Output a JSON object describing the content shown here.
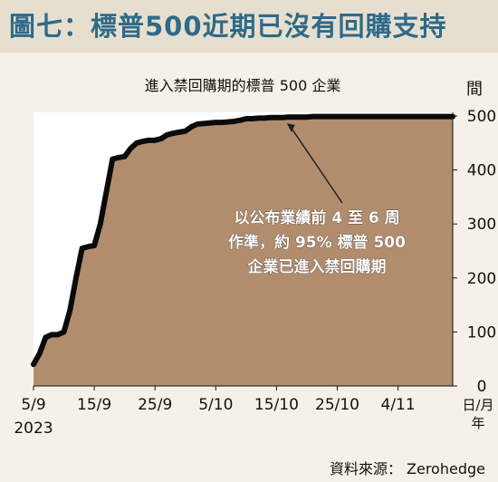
{
  "header": {
    "title": "圖七：標普500近期已沒有回購支持"
  },
  "footer": {
    "source": "資料來源： Zerohedge"
  },
  "colors": {
    "area": "#b18d6e",
    "line": "#0a0a0a",
    "title": "#2e6a8a",
    "header_bg": "#e6dfcf",
    "page_bg": "#f6f1e8"
  },
  "chart_data": {
    "type": "area",
    "title": "進入禁回購期的標普 500 企業",
    "ylabel": "間",
    "xlabel_line1": "日/月",
    "xlabel_line2": "年",
    "ylim": [
      0,
      500
    ],
    "xlim": [
      0,
      69
    ],
    "y_ticks": [
      0,
      100,
      200,
      300,
      400,
      500
    ],
    "x_ticks": [
      {
        "day": 0,
        "label": "5/9",
        "sublabel": "2023"
      },
      {
        "day": 10,
        "label": "15/9"
      },
      {
        "day": 20,
        "label": "25/9"
      },
      {
        "day": 30,
        "label": "5/10"
      },
      {
        "day": 40,
        "label": "15/10"
      },
      {
        "day": 50,
        "label": "25/10"
      },
      {
        "day": 60,
        "label": "4/11"
      }
    ],
    "x_days": [
      0,
      1,
      2,
      3,
      4,
      5,
      6,
      7,
      8,
      9,
      10,
      11,
      12,
      13,
      14,
      15,
      16,
      17,
      18,
      19,
      20,
      21,
      22,
      23,
      24,
      25,
      26,
      27,
      28,
      29,
      30,
      31,
      32,
      33,
      34,
      35,
      36,
      37,
      38,
      39,
      40,
      41,
      42,
      43,
      44,
      45,
      46,
      47,
      48,
      49,
      50,
      51,
      52,
      53,
      54,
      55,
      56,
      57,
      58,
      59,
      60,
      61,
      62,
      63,
      64,
      65,
      66,
      67,
      68,
      69
    ],
    "values": [
      40,
      60,
      90,
      95,
      95,
      100,
      140,
      200,
      255,
      258,
      260,
      300,
      360,
      420,
      423,
      425,
      440,
      450,
      453,
      455,
      455,
      458,
      465,
      468,
      470,
      472,
      480,
      485,
      486,
      487,
      488,
      488,
      489,
      490,
      492,
      495,
      495,
      496,
      496,
      497,
      497,
      497,
      498,
      498,
      498,
      498,
      499,
      499,
      499,
      499,
      499,
      499,
      499,
      499,
      499,
      499,
      499,
      499,
      499,
      499,
      499,
      499,
      499,
      499,
      499,
      499,
      499,
      499,
      499,
      499
    ],
    "annotation": {
      "lines": [
        "以公布業績前 4 至 6 周",
        "作準，約 95% 標普 500",
        "企業已進入禁回購期"
      ],
      "arrow_to": {
        "day": 42,
        "value": 490
      }
    }
  }
}
